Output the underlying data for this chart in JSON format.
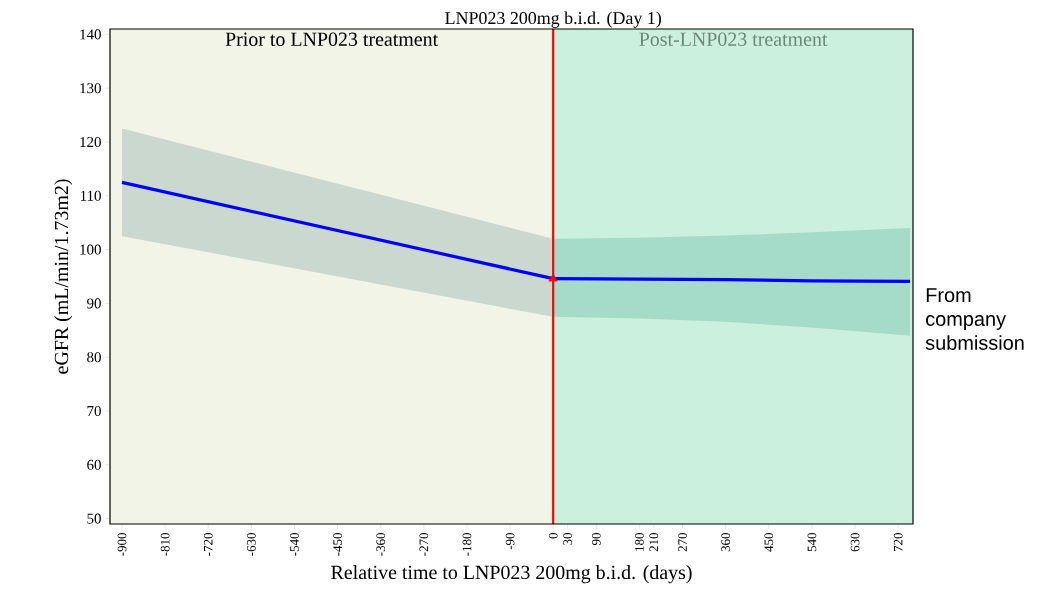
{
  "chart_data": {
    "type": "line",
    "xlabel": "Relative time to LNP023 200mg b.i.d. (days)",
    "ylabel": "eGFR (mL/min/1.73m2)",
    "series": [
      {
        "color": "#0000ff",
        "x": [
          -900,
          0
        ],
        "values": [
          112.5,
          94.6
        ],
        "lower": [
          102.5,
          87.5
        ],
        "upper": [
          122.5,
          102
        ]
      },
      {
        "color": "#0000ff",
        "x": [
          0,
          180,
          360,
          540,
          745
        ],
        "values": [
          94.6,
          94.5,
          94.4,
          94.2,
          94.1
        ],
        "lower": [
          87.5,
          87.2,
          86.6,
          85.5,
          84
        ],
        "upper": [
          102,
          102.2,
          102.6,
          103.2,
          104
        ]
      },
      {
        "type": "scatter",
        "color": "#ff0000",
        "marker": "triangle",
        "x": [
          0
        ],
        "values": [
          94.6
        ]
      }
    ],
    "xlim": [
      -925,
      751
    ],
    "ylim": [
      49,
      141
    ],
    "xticks": [
      -900,
      -810,
      -720,
      -630,
      -540,
      -450,
      -360,
      -270,
      -180,
      -90,
      0,
      30,
      90,
      180,
      210,
      270,
      360,
      450,
      540,
      630,
      720
    ],
    "yticks": [
      50,
      60,
      70,
      80,
      90,
      100,
      110,
      120,
      130,
      140
    ],
    "ref_lines": [
      {
        "axis": "x",
        "value": 0,
        "label": "LNP023 200mg b.i.d. (Day 1)",
        "color": "#ff0000"
      }
    ],
    "bands": [
      {
        "axis": "x",
        "from": -925,
        "to": 0,
        "label": "Prior to LNP023 treatment",
        "color": "#f2f4e8"
      },
      {
        "axis": "x",
        "from": 0,
        "to": 751,
        "label": "Post-LNP023 treatment",
        "color": "#cbf0dd"
      }
    ],
    "annotations": [
      "From company submission"
    ],
    "grid": false
  }
}
